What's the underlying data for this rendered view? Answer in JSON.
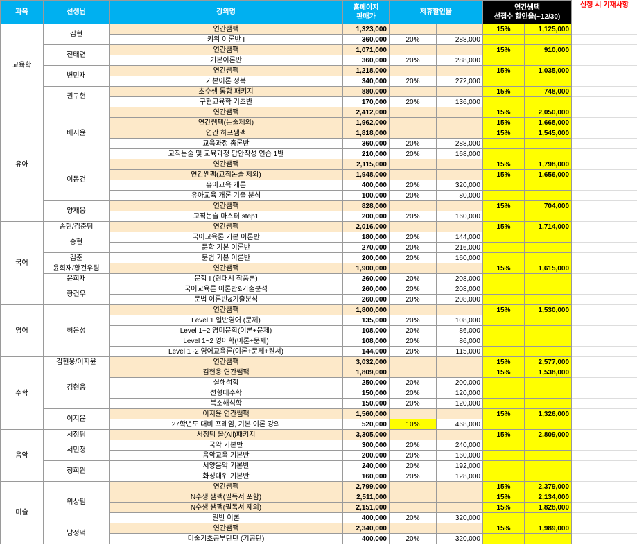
{
  "header": {
    "subject": "과목",
    "teacher": "선생님",
    "course": "강의명",
    "price_lines": [
      "홈페이지",
      "판매가"
    ],
    "partner": "제휴할인율",
    "early_lines": [
      "연간쌤팩",
      "선접수 할인율(~12/30)"
    ],
    "note": "신청 시 기재사항"
  },
  "subjects": [
    {
      "name": "교육학",
      "teachers": [
        {
          "name": "김현",
          "courses": [
            {
              "title": "연간쌤팩",
              "price": "1,323,000",
              "early_rate": "15%",
              "early_price": "1,125,000"
            },
            {
              "title": "키위 이론반 I",
              "price": "360,000",
              "rate": "20%",
              "sale": "288,000"
            }
          ]
        },
        {
          "name": "전태련",
          "courses": [
            {
              "title": "연간쌤팩",
              "price": "1,071,000",
              "early_rate": "15%",
              "early_price": "910,000"
            },
            {
              "title": "기본이론반",
              "price": "360,000",
              "rate": "20%",
              "sale": "288,000"
            }
          ]
        },
        {
          "name": "변민재",
          "courses": [
            {
              "title": "연간쌤팩",
              "price": "1,218,000",
              "early_rate": "15%",
              "early_price": "1,035,000"
            },
            {
              "title": "기본이론 정복",
              "price": "340,000",
              "rate": "20%",
              "sale": "272,000"
            }
          ]
        },
        {
          "name": "권구현",
          "courses": [
            {
              "title": "초수생 통합 패키지",
              "price": "880,000",
              "early_rate": "15%",
              "early_price": "748,000"
            },
            {
              "title": "구현교육학 기초반",
              "price": "170,000",
              "rate": "20%",
              "sale": "136,000"
            }
          ]
        }
      ]
    },
    {
      "name": "유아",
      "teachers": [
        {
          "name": "배지윤",
          "courses": [
            {
              "title": "연간쌤팩",
              "price": "2,412,000",
              "early_rate": "15%",
              "early_price": "2,050,000"
            },
            {
              "title": "연간쌤팩(논술제외)",
              "price": "1,962,000",
              "early_rate": "15%",
              "early_price": "1,668,000"
            },
            {
              "title": "연간 하프쌤팩",
              "price": "1,818,000",
              "early_rate": "15%",
              "early_price": "1,545,000"
            },
            {
              "title": "교육과정 총론반",
              "price": "360,000",
              "rate": "20%",
              "sale": "288,000"
            },
            {
              "title": "교직논술 및 교육과정 답안작성 연습 1반",
              "price": "210,000",
              "rate": "20%",
              "sale": "168,000"
            }
          ]
        },
        {
          "name": "이동건",
          "courses": [
            {
              "title": "연간쌤팩",
              "price": "2,115,000",
              "early_rate": "15%",
              "early_price": "1,798,000"
            },
            {
              "title": "연간쌤팩(교직논술 제외)",
              "price": "1,948,000",
              "early_rate": "15%",
              "early_price": "1,656,000"
            },
            {
              "title": "유아교육 개론",
              "price": "400,000",
              "rate": "20%",
              "sale": "320,000"
            },
            {
              "title": "유아교육 개론 기출 분석",
              "price": "100,000",
              "rate": "20%",
              "sale": "80,000"
            }
          ]
        },
        {
          "name": "양재웅",
          "courses": [
            {
              "title": "연간쌤팩",
              "price": "828,000",
              "early_rate": "15%",
              "early_price": "704,000"
            },
            {
              "title": "교직논술 마스터 step1",
              "price": "200,000",
              "rate": "20%",
              "sale": "160,000"
            }
          ]
        }
      ]
    },
    {
      "name": "국어",
      "teachers": [
        {
          "name": "송현/김준팀",
          "courses": [
            {
              "title": "연간쌤팩",
              "price": "2,016,000",
              "early_rate": "15%",
              "early_price": "1,714,000"
            }
          ]
        },
        {
          "name": "송현",
          "courses": [
            {
              "title": "국어교육론 기본 이론반",
              "price": "180,000",
              "rate": "20%",
              "sale": "144,000"
            },
            {
              "title": "문학 기본 이론반",
              "price": "270,000",
              "rate": "20%",
              "sale": "216,000"
            }
          ]
        },
        {
          "name": "김준",
          "courses": [
            {
              "title": "문법 기본 이론반",
              "price": "200,000",
              "rate": "20%",
              "sale": "160,000"
            }
          ]
        },
        {
          "name": "윤희재/황건우팀",
          "courses": [
            {
              "title": "연간쌤팩",
              "price": "1,900,000",
              "early_rate": "15%",
              "early_price": "1,615,000"
            }
          ]
        },
        {
          "name": "윤희재",
          "courses": [
            {
              "title": "문학 I (현대시 작품론)",
              "price": "260,000",
              "rate": "20%",
              "sale": "208,000"
            }
          ]
        },
        {
          "name": "황건우",
          "courses": [
            {
              "title": "국어교육론 이론반&기출분석",
              "price": "260,000",
              "rate": "20%",
              "sale": "208,000"
            },
            {
              "title": "문법 이론반&기출분석",
              "price": "260,000",
              "rate": "20%",
              "sale": "208,000"
            }
          ]
        }
      ]
    },
    {
      "name": "영어",
      "teachers": [
        {
          "name": "허은성",
          "courses": [
            {
              "title": "연간쌤팩",
              "price": "1,800,000",
              "early_rate": "15%",
              "early_price": "1,530,000"
            },
            {
              "title": "Level 1 일반영어 (문제)",
              "price": "135,000",
              "rate": "20%",
              "sale": "108,000"
            },
            {
              "title": "Level 1~2 영미문학(이론+문제)",
              "price": "108,000",
              "rate": "20%",
              "sale": "86,000"
            },
            {
              "title": "Level 1~2 영어학(이론+문제)",
              "price": "108,000",
              "rate": "20%",
              "sale": "86,000"
            },
            {
              "title": "Level 1~2 영어교육론(이론+문제+원서)",
              "price": "144,000",
              "rate": "20%",
              "sale": "115,000"
            }
          ]
        }
      ]
    },
    {
      "name": "수학",
      "teachers": [
        {
          "name": "김현웅/이지윤",
          "courses": [
            {
              "title": "연간쌤팩",
              "price": "3,032,000",
              "early_rate": "15%",
              "early_price": "2,577,000"
            }
          ]
        },
        {
          "name": "김현웅",
          "courses": [
            {
              "title": "김현웅 연간쌤팩",
              "price": "1,809,000",
              "early_rate": "15%",
              "early_price": "1,538,000"
            },
            {
              "title": "실해석학",
              "price": "250,000",
              "rate": "20%",
              "sale": "200,000"
            },
            {
              "title": "선형대수학",
              "price": "150,000",
              "rate": "20%",
              "sale": "120,000"
            },
            {
              "title": "복소해석학",
              "price": "150,000",
              "rate": "20%",
              "sale": "120,000"
            }
          ]
        },
        {
          "name": "이지윤",
          "courses": [
            {
              "title": "이지윤 연간쌤팩",
              "price": "1,560,000",
              "early_rate": "15%",
              "early_price": "1,326,000"
            },
            {
              "title": "27학년도 대비 프레임, 기본 이론 강의",
              "price": "520,000",
              "rate": "10%",
              "rate_color": "#ffff00",
              "sale": "468,000"
            }
          ]
        }
      ]
    },
    {
      "name": "음악",
      "teachers": [
        {
          "name": "서정팀",
          "courses": [
            {
              "title": "서정팀 올(All)패키지",
              "price": "3,305,000",
              "early_rate": "15%",
              "early_price": "2,809,000"
            }
          ]
        },
        {
          "name": "서민정",
          "courses": [
            {
              "title": "국악 기본반",
              "price": "300,000",
              "rate": "20%",
              "sale": "240,000"
            },
            {
              "title": "음악교육 기본반",
              "price": "200,000",
              "rate": "20%",
              "sale": "160,000"
            }
          ]
        },
        {
          "name": "정희원",
          "courses": [
            {
              "title": "서양음악 기본반",
              "price": "240,000",
              "rate": "20%",
              "sale": "192,000"
            },
            {
              "title": "화성대위 기본반",
              "price": "160,000",
              "rate": "20%",
              "sale": "128,000"
            }
          ]
        }
      ]
    },
    {
      "name": "미술",
      "teachers": [
        {
          "name": "위상팀",
          "courses": [
            {
              "title": "연간쌤팩",
              "price": "2,799,000",
              "early_rate": "15%",
              "early_price": "2,379,000"
            },
            {
              "title": "N수생 쌤팩(필독서 포함)",
              "price": "2,511,000",
              "early_rate": "15%",
              "early_price": "2,134,000"
            },
            {
              "title": "N수생 쌤팩(필독서 제외)",
              "price": "2,151,000",
              "early_rate": "15%",
              "early_price": "1,828,000"
            },
            {
              "title": "일반 이론",
              "price": "400,000",
              "rate": "20%",
              "sale": "320,000"
            }
          ]
        },
        {
          "name": "남정덕",
          "courses": [
            {
              "title": "연간쌤팩",
              "price": "2,340,000",
              "early_rate": "15%",
              "early_price": "1,989,000"
            },
            {
              "title": "미술기초공부탄탄 (기공탄)",
              "price": "400,000",
              "rate": "20%",
              "sale": "320,000"
            }
          ]
        }
      ]
    }
  ]
}
